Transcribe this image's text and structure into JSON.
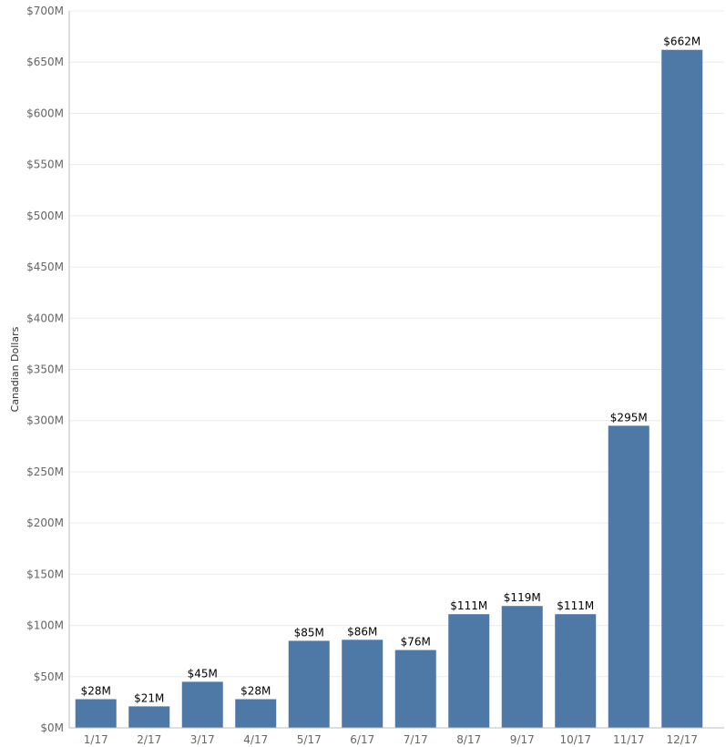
{
  "chart_data": {
    "type": "bar",
    "title": "",
    "xlabel": "",
    "ylabel": "Canadian Dollars",
    "ylim": [
      0,
      700
    ],
    "yticks": [
      0,
      50,
      100,
      150,
      200,
      250,
      300,
      350,
      400,
      450,
      500,
      550,
      600,
      650,
      700
    ],
    "ytick_labels": [
      "$0M",
      "$50M",
      "$100M",
      "$150M",
      "$200M",
      "$250M",
      "$300M",
      "$350M",
      "$400M",
      "$450M",
      "$500M",
      "$550M",
      "$600M",
      "$650M",
      "$700M"
    ],
    "categories": [
      "1/17",
      "2/17",
      "3/17",
      "4/17",
      "5/17",
      "6/17",
      "7/17",
      "8/17",
      "9/17",
      "10/17",
      "11/17",
      "12/17"
    ],
    "values": [
      28,
      21,
      45,
      28,
      85,
      86,
      76,
      111,
      119,
      111,
      295,
      662
    ],
    "data_labels": [
      "$28M",
      "$21M",
      "$45M",
      "$28M",
      "$85M",
      "$86M",
      "$76M",
      "$111M",
      "$119M",
      "$111M",
      "$295M",
      "$662M"
    ],
    "grid": true,
    "legend": "none",
    "colors": {
      "bar": "#4e79a7"
    }
  }
}
